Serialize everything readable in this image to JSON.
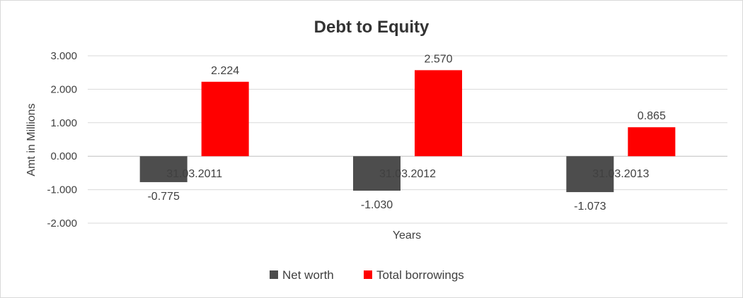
{
  "chart_data": {
    "type": "bar",
    "title": "Debt to Equity",
    "xlabel": "Years",
    "ylabel": "Amt in Millions",
    "categories": [
      "31.03.2011",
      "31.03.2012",
      "31.03.2013"
    ],
    "series": [
      {
        "name": "Net worth",
        "values": [
          -0.775,
          -1.03,
          -1.073
        ],
        "color": "#4d4d4d"
      },
      {
        "name": "Total borrowings",
        "values": [
          2.224,
          2.57,
          0.865
        ],
        "color": "#ff0000"
      }
    ],
    "ylim": [
      -2,
      3
    ],
    "yticks": [
      3,
      2,
      1,
      0,
      -1,
      -2
    ],
    "ytick_labels": [
      "3.000",
      "2.000",
      "1.000",
      "0.000",
      "-1.000",
      "-2.000"
    ],
    "data_labels": [
      [
        "-0.775",
        "-1.030",
        "-1.073"
      ],
      [
        "2.224",
        "2.570",
        "0.865"
      ]
    ],
    "grid": true,
    "legend_position": "bottom"
  }
}
